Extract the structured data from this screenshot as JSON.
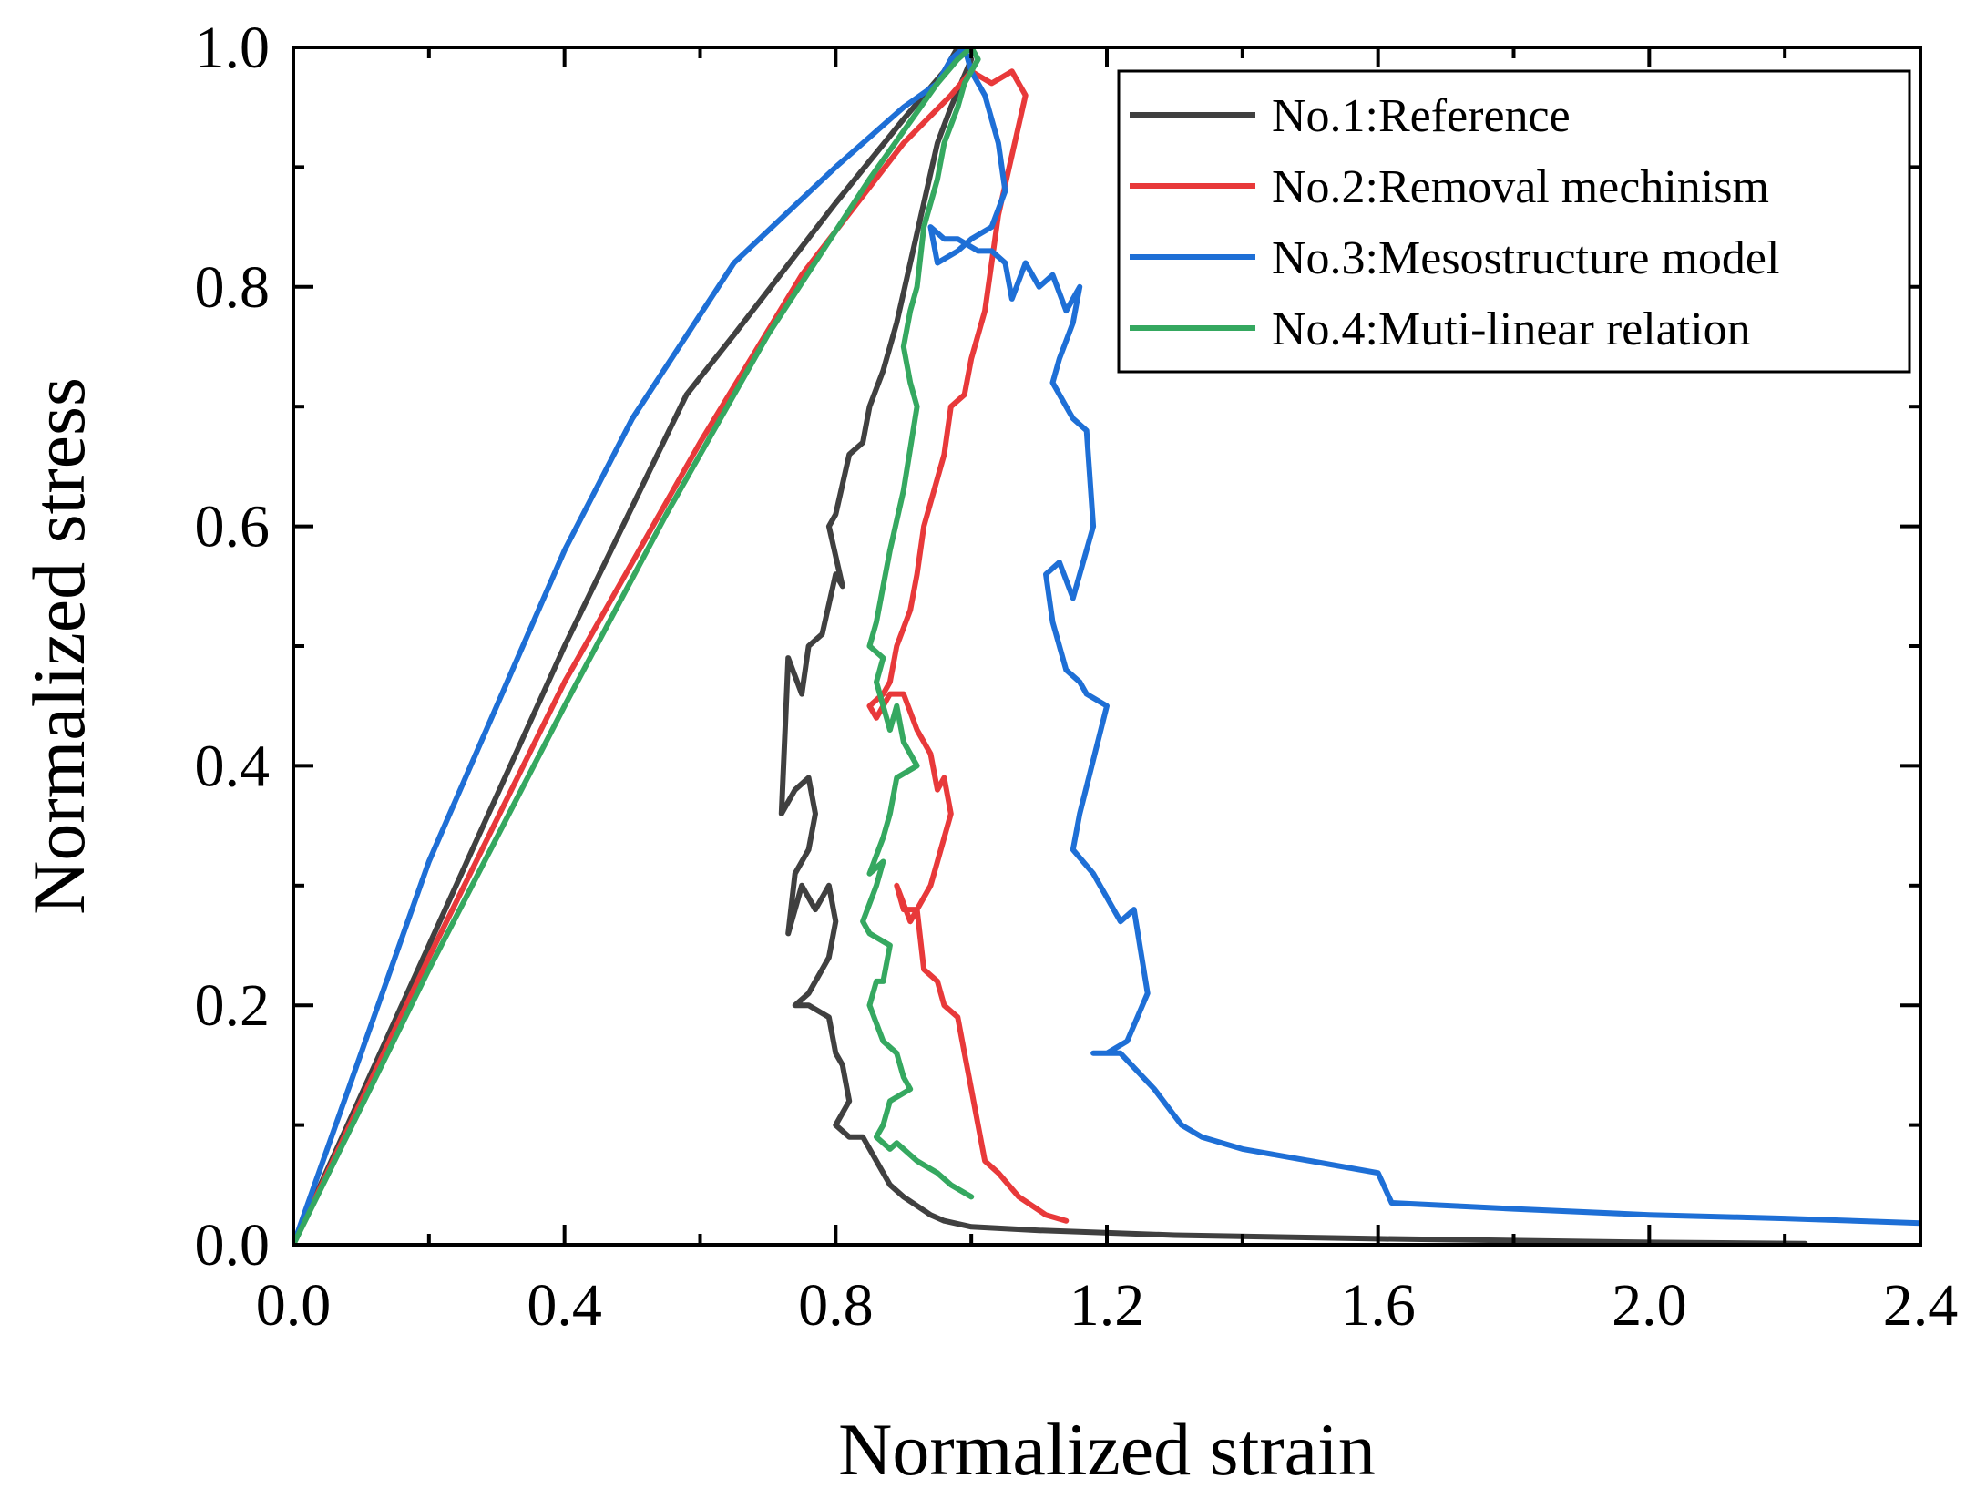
{
  "chart_data": {
    "type": "line",
    "title": "",
    "xlabel": "Normalized strain",
    "ylabel": "Normalized stress",
    "xlim": [
      0.0,
      2.4
    ],
    "ylim": [
      0.0,
      1.0
    ],
    "xticks": [
      "0.0",
      "0.4",
      "0.8",
      "1.2",
      "1.6",
      "2.0",
      "2.4"
    ],
    "xtick_values": [
      0.0,
      0.4,
      0.8,
      1.2,
      1.6,
      2.0,
      2.4
    ],
    "yticks": [
      "0.0",
      "0.2",
      "0.4",
      "0.6",
      "0.8",
      "1.0"
    ],
    "ytick_values": [
      0.0,
      0.2,
      0.4,
      0.6,
      0.8,
      1.0
    ],
    "grid": false,
    "legend_position": "top-right",
    "series": [
      {
        "name": "No.1:Reference",
        "color": "#404040",
        "x": [
          0.0,
          0.2,
          0.4,
          0.58,
          0.65,
          0.8,
          0.9,
          0.96,
          0.98,
          1.0,
          0.97,
          0.95,
          0.93,
          0.91,
          0.89,
          0.87,
          0.85,
          0.84,
          0.82,
          0.8,
          0.79,
          0.81,
          0.8,
          0.78,
          0.76,
          0.75,
          0.73,
          0.72,
          0.74,
          0.76,
          0.77,
          0.76,
          0.74,
          0.73,
          0.75,
          0.77,
          0.79,
          0.8,
          0.79,
          0.76,
          0.74,
          0.76,
          0.79,
          0.8,
          0.81,
          0.82,
          0.8,
          0.82,
          0.84,
          0.86,
          0.88,
          0.9,
          0.94,
          0.96,
          1.0,
          1.1,
          1.3,
          1.6,
          2.0,
          2.23
        ],
        "y": [
          0.0,
          0.25,
          0.5,
          0.71,
          0.76,
          0.87,
          0.94,
          0.98,
          1.0,
          0.99,
          0.95,
          0.92,
          0.87,
          0.82,
          0.77,
          0.73,
          0.7,
          0.67,
          0.66,
          0.61,
          0.6,
          0.55,
          0.56,
          0.51,
          0.5,
          0.46,
          0.49,
          0.36,
          0.38,
          0.39,
          0.36,
          0.33,
          0.31,
          0.26,
          0.3,
          0.28,
          0.3,
          0.27,
          0.24,
          0.21,
          0.2,
          0.2,
          0.19,
          0.16,
          0.15,
          0.12,
          0.1,
          0.09,
          0.09,
          0.07,
          0.05,
          0.04,
          0.025,
          0.02,
          0.015,
          0.012,
          0.008,
          0.005,
          0.002,
          0.001
        ]
      },
      {
        "name": "No.2:Removal mechinism",
        "color": "#e8393a",
        "x": [
          0.0,
          0.2,
          0.4,
          0.6,
          0.75,
          0.9,
          0.97,
          1.0,
          1.03,
          1.06,
          1.08,
          1.06,
          1.04,
          1.03,
          1.02,
          1.0,
          0.99,
          0.97,
          0.96,
          0.95,
          0.93,
          0.92,
          0.91,
          0.89,
          0.88,
          0.87,
          0.85,
          0.86,
          0.88,
          0.9,
          0.92,
          0.94,
          0.95,
          0.96,
          0.97,
          0.95,
          0.94,
          0.92,
          0.91,
          0.89,
          0.9,
          0.92,
          0.93,
          0.95,
          0.96,
          0.98,
          0.99,
          1.0,
          1.01,
          1.02,
          1.04,
          1.07,
          1.11,
          1.14
        ],
        "y": [
          0.0,
          0.24,
          0.47,
          0.67,
          0.81,
          0.92,
          0.96,
          0.98,
          0.97,
          0.98,
          0.96,
          0.91,
          0.86,
          0.82,
          0.78,
          0.74,
          0.71,
          0.7,
          0.66,
          0.64,
          0.6,
          0.56,
          0.53,
          0.5,
          0.47,
          0.46,
          0.45,
          0.44,
          0.46,
          0.46,
          0.43,
          0.41,
          0.38,
          0.39,
          0.36,
          0.32,
          0.3,
          0.28,
          0.27,
          0.3,
          0.28,
          0.28,
          0.23,
          0.22,
          0.2,
          0.19,
          0.16,
          0.13,
          0.1,
          0.07,
          0.06,
          0.04,
          0.025,
          0.02
        ]
      },
      {
        "name": "No.3:Mesostructure model",
        "color": "#1e6fd6",
        "x": [
          0.0,
          0.2,
          0.4,
          0.5,
          0.65,
          0.8,
          0.9,
          0.95,
          0.97,
          0.99,
          1.0,
          1.02,
          1.04,
          1.05,
          1.03,
          1.0,
          0.98,
          0.95,
          0.94,
          0.96,
          0.98,
          1.01,
          1.03,
          1.05,
          1.06,
          1.08,
          1.1,
          1.12,
          1.14,
          1.16,
          1.15,
          1.13,
          1.12,
          1.14,
          1.15,
          1.17,
          1.18,
          1.15,
          1.13,
          1.11,
          1.12,
          1.14,
          1.16,
          1.17,
          1.2,
          1.16,
          1.15,
          1.18,
          1.2,
          1.22,
          1.24,
          1.26,
          1.23,
          1.2,
          1.18,
          1.19,
          1.22,
          1.27,
          1.31,
          1.34,
          1.4,
          1.5,
          1.6,
          1.62,
          1.8,
          2.0,
          2.2,
          2.4
        ],
        "y": [
          0.0,
          0.32,
          0.58,
          0.69,
          0.82,
          0.9,
          0.95,
          0.97,
          0.99,
          1.0,
          0.98,
          0.96,
          0.92,
          0.88,
          0.85,
          0.84,
          0.83,
          0.82,
          0.85,
          0.84,
          0.84,
          0.83,
          0.83,
          0.82,
          0.79,
          0.82,
          0.8,
          0.81,
          0.78,
          0.8,
          0.77,
          0.74,
          0.72,
          0.7,
          0.69,
          0.68,
          0.6,
          0.54,
          0.57,
          0.56,
          0.52,
          0.48,
          0.47,
          0.46,
          0.45,
          0.36,
          0.33,
          0.31,
          0.29,
          0.27,
          0.28,
          0.21,
          0.17,
          0.16,
          0.16,
          0.16,
          0.16,
          0.13,
          0.1,
          0.09,
          0.08,
          0.07,
          0.06,
          0.035,
          0.03,
          0.025,
          0.022,
          0.018
        ]
      },
      {
        "name": "No.4:Muti-linear relation",
        "color": "#35a860",
        "x": [
          0.0,
          0.2,
          0.4,
          0.55,
          0.7,
          0.85,
          0.95,
          0.98,
          1.0,
          1.01,
          0.99,
          0.98,
          0.96,
          0.95,
          0.93,
          0.92,
          0.91,
          0.9,
          0.91,
          0.92,
          0.9,
          0.88,
          0.87,
          0.86,
          0.85,
          0.87,
          0.86,
          0.88,
          0.89,
          0.9,
          0.92,
          0.89,
          0.88,
          0.87,
          0.85,
          0.87,
          0.86,
          0.84,
          0.85,
          0.88,
          0.87,
          0.86,
          0.85,
          0.87,
          0.89,
          0.9,
          0.91,
          0.88,
          0.87,
          0.86,
          0.88,
          0.89,
          0.9,
          0.92,
          0.95,
          0.97,
          1.0
        ],
        "y": [
          0.0,
          0.23,
          0.45,
          0.61,
          0.76,
          0.89,
          0.97,
          0.99,
          1.0,
          0.99,
          0.97,
          0.95,
          0.92,
          0.89,
          0.85,
          0.8,
          0.78,
          0.75,
          0.72,
          0.7,
          0.63,
          0.58,
          0.55,
          0.52,
          0.5,
          0.49,
          0.47,
          0.43,
          0.45,
          0.42,
          0.4,
          0.39,
          0.36,
          0.34,
          0.31,
          0.32,
          0.3,
          0.27,
          0.26,
          0.25,
          0.22,
          0.22,
          0.2,
          0.17,
          0.16,
          0.14,
          0.13,
          0.12,
          0.1,
          0.09,
          0.08,
          0.085,
          0.08,
          0.07,
          0.06,
          0.05,
          0.04
        ]
      }
    ]
  }
}
